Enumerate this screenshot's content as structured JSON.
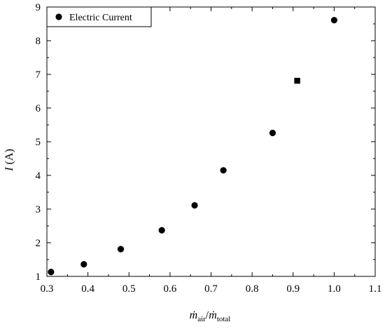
{
  "chart_data": {
    "type": "scatter",
    "title": "",
    "xlabel": {
      "main": "ṁ",
      "sub": "air",
      "sep": "/",
      "main2": "ṁ",
      "sub2": "total"
    },
    "ylabel": {
      "italic": "I",
      "rest": " (A)"
    },
    "xlim": [
      0.3,
      1.1
    ],
    "ylim": [
      1,
      9
    ],
    "x_ticks": [
      "0.3",
      "0.4",
      "0.5",
      "0.6",
      "0.7",
      "0.8",
      "0.9",
      "1.0",
      "1.1"
    ],
    "y_ticks": [
      "1",
      "2",
      "3",
      "4",
      "5",
      "6",
      "7",
      "8",
      "9"
    ],
    "grid": false,
    "legend": {
      "position": "top-left"
    },
    "series": [
      {
        "name": "Electric Current",
        "marker": "circle",
        "color": "#000000",
        "points": [
          {
            "x": 0.31,
            "y": 1.13
          },
          {
            "x": 0.39,
            "y": 1.36
          },
          {
            "x": 0.48,
            "y": 1.81
          },
          {
            "x": 0.58,
            "y": 2.37
          },
          {
            "x": 0.66,
            "y": 3.11
          },
          {
            "x": 0.73,
            "y": 4.15
          },
          {
            "x": 0.85,
            "y": 5.26
          },
          {
            "x": 1.0,
            "y": 8.61
          }
        ]
      },
      {
        "marker": "square",
        "color": "#000000",
        "points": [
          {
            "x": 0.91,
            "y": 6.81
          }
        ]
      }
    ]
  }
}
